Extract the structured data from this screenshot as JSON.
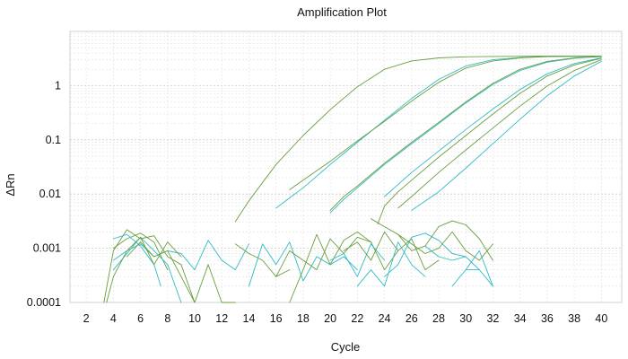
{
  "chart_data": {
    "type": "line",
    "title": "Amplification Plot",
    "xlabel": "Cycle",
    "ylabel": "ΔRn",
    "xlim": [
      0.8,
      41.5
    ],
    "ylim": [
      0.0001,
      10
    ],
    "yscale": "log",
    "grid": true,
    "x_ticks": [
      2,
      4,
      6,
      8,
      10,
      12,
      14,
      16,
      18,
      20,
      22,
      24,
      26,
      28,
      30,
      32,
      34,
      36,
      38,
      40
    ],
    "x_tick_labels": [
      "2",
      "4",
      "6",
      "8",
      "10",
      "12",
      "14",
      "16",
      "18",
      "20",
      "22",
      "24",
      "26",
      "28",
      "30",
      "32",
      "34",
      "36",
      "38",
      "40"
    ],
    "y_ticks": [
      0.0001,
      0.001,
      0.01,
      0.1,
      1
    ],
    "y_tick_labels": [
      "0.0001",
      "0.001",
      "0.01",
      "0.1",
      "1"
    ],
    "colors": {
      "teal": "#2ebcc3",
      "green": "#6a9e3f"
    },
    "series": [
      {
        "color": "#6a9e3f",
        "x": [
          13,
          14,
          16,
          18,
          20,
          22,
          24,
          26,
          28,
          30,
          32,
          34,
          36,
          38,
          40
        ],
        "y": [
          0.0031,
          0.0075,
          0.035,
          0.12,
          0.36,
          0.95,
          2.0,
          2.85,
          3.25,
          3.4,
          3.45,
          3.48,
          3.5,
          3.5,
          3.5
        ]
      },
      {
        "color": "#2ebcc3",
        "x": [
          16,
          17,
          18,
          20,
          22,
          24,
          26,
          28,
          30,
          32,
          34,
          36,
          38,
          40
        ],
        "y": [
          0.0055,
          0.0085,
          0.013,
          0.035,
          0.09,
          0.23,
          0.58,
          1.3,
          2.3,
          3.0,
          3.3,
          3.45,
          3.48,
          3.5
        ]
      },
      {
        "color": "#6a9e3f",
        "x": [
          17,
          18,
          20,
          22,
          24,
          26,
          28,
          30,
          32,
          34,
          36,
          38,
          40
        ],
        "y": [
          0.012,
          0.018,
          0.04,
          0.095,
          0.22,
          0.52,
          1.15,
          2.1,
          2.85,
          3.25,
          3.42,
          3.47,
          3.5
        ]
      },
      {
        "color": "#2ebcc3",
        "x": [
          20,
          21,
          22,
          24,
          26,
          28,
          30,
          32,
          34,
          36,
          38,
          40
        ],
        "y": [
          0.0045,
          0.008,
          0.013,
          0.035,
          0.085,
          0.2,
          0.48,
          1.05,
          1.9,
          2.7,
          3.2,
          3.45
        ]
      },
      {
        "color": "#6a9e3f",
        "x": [
          20,
          21,
          22,
          24,
          26,
          28,
          30,
          32,
          34,
          36,
          38,
          40
        ],
        "y": [
          0.005,
          0.009,
          0.014,
          0.037,
          0.09,
          0.21,
          0.5,
          1.1,
          2.0,
          2.8,
          3.25,
          3.45
        ]
      },
      {
        "color": "#2ebcc3",
        "x": [
          24,
          25,
          26,
          28,
          30,
          32,
          34,
          36,
          38,
          40
        ],
        "y": [
          0.009,
          0.015,
          0.025,
          0.062,
          0.155,
          0.37,
          0.85,
          1.65,
          2.55,
          3.25
        ]
      },
      {
        "color": "#6a9e3f",
        "x": [
          23.5,
          24,
          25,
          26,
          28,
          30,
          32,
          34,
          36,
          38,
          40
        ],
        "y": [
          0.0028,
          0.006,
          0.011,
          0.018,
          0.048,
          0.12,
          0.3,
          0.72,
          1.5,
          2.4,
          3.2
        ]
      },
      {
        "color": "#6a9e3f",
        "x": [
          25,
          26,
          28,
          30,
          32,
          34,
          36,
          38,
          40
        ],
        "y": [
          0.0055,
          0.009,
          0.025,
          0.065,
          0.165,
          0.42,
          0.98,
          1.9,
          3.0
        ]
      },
      {
        "color": "#2ebcc3",
        "x": [
          26,
          28,
          30,
          32,
          34,
          36,
          38,
          40
        ],
        "y": [
          0.005,
          0.011,
          0.03,
          0.085,
          0.24,
          0.65,
          1.5,
          2.8
        ]
      },
      {
        "color": "#2ebcc3",
        "x": [
          4,
          5,
          6,
          7,
          8,
          9,
          10,
          11,
          12,
          13,
          14
        ],
        "y": [
          0.0006,
          0.0009,
          0.0012,
          0.0007,
          0.0009,
          0.0008,
          0.0004,
          0.0014,
          0.0006,
          0.0004,
          0.0012
        ]
      },
      {
        "color": "#6a9e3f",
        "x": [
          4,
          5,
          6,
          7,
          8
        ],
        "y": [
          0.001,
          0.0015,
          0.0019,
          0.0013,
          0.0004
        ]
      },
      {
        "color": "#2ebcc3",
        "x": [
          4,
          5,
          6,
          7,
          8,
          9
        ],
        "y": [
          0.0004,
          0.0008,
          0.0016,
          0.0009,
          0.0005,
          0.0001
        ]
      },
      {
        "color": "#6a9e3f",
        "x": [
          3.3,
          4,
          5,
          6,
          7,
          8,
          9,
          10
        ],
        "y": [
          0.0001,
          0.0009,
          0.0022,
          0.0015,
          0.0017,
          0.0007,
          0.0005,
          0.0001
        ]
      },
      {
        "color": "#2ebcc3",
        "x": [
          4,
          5,
          6,
          7,
          7.5
        ],
        "y": [
          0.0015,
          0.0018,
          0.0011,
          0.0005,
          0.0002
        ]
      },
      {
        "color": "#6a9e3f",
        "x": [
          5,
          6,
          7,
          8,
          9,
          10
        ],
        "y": [
          0.0007,
          0.0013,
          0.0007,
          0.0009,
          0.0003,
          0.0001
        ]
      },
      {
        "color": "#6a9e3f",
        "x": [
          3.5,
          4,
          5,
          6,
          7,
          8,
          9
        ],
        "y": [
          0.0001,
          0.0003,
          0.0009,
          0.0016,
          0.0005,
          0.0013,
          0.0007
        ]
      },
      {
        "color": "#6a9e3f",
        "x": [
          10,
          11,
          12,
          13
        ],
        "y": [
          0.0001,
          0.0005,
          0.0001,
          0.0001
        ]
      },
      {
        "color": "#6a9e3f",
        "x": [
          13,
          14,
          15,
          16,
          17
        ],
        "y": [
          0.0012,
          0.0008,
          0.0006,
          0.0003,
          0.0004
        ]
      },
      {
        "color": "#2ebcc3",
        "x": [
          14,
          15,
          16,
          17,
          18,
          19,
          20,
          21,
          22
        ],
        "y": [
          0.0002,
          0.0012,
          0.0005,
          0.0013,
          0.00025,
          0.0007,
          0.0005,
          0.0007,
          0.0004
        ]
      },
      {
        "color": "#6a9e3f",
        "x": [
          16,
          17,
          18,
          19,
          20,
          21,
          22,
          23,
          24,
          25
        ],
        "y": [
          0.0003,
          0.0009,
          0.0006,
          0.0004,
          0.0015,
          0.0008,
          0.0016,
          0.0013,
          0.0004,
          0.0009
        ]
      },
      {
        "color": "#6a9e3f",
        "x": [
          17,
          18,
          19,
          20,
          21,
          22,
          23
        ],
        "y": [
          0.0001,
          0.0004,
          0.0018,
          0.0005,
          0.0014,
          0.002,
          0.0013
        ]
      },
      {
        "color": "#2ebcc3",
        "x": [
          20,
          21,
          22,
          23,
          24
        ],
        "y": [
          0.0006,
          0.0008,
          0.0003,
          0.0012,
          0.0006
        ]
      },
      {
        "color": "#6a9e3f",
        "x": [
          21,
          22,
          23,
          24,
          25,
          26,
          27,
          28
        ],
        "y": [
          0.0009,
          0.0013,
          0.0006,
          0.002,
          0.0009,
          0.0015,
          0.0004,
          0.0006
        ]
      },
      {
        "color": "#6a9e3f",
        "x": [
          23,
          24,
          25,
          26,
          27,
          28,
          29,
          30,
          31,
          32
        ],
        "y": [
          0.0035,
          0.0025,
          0.0018,
          0.0009,
          0.0011,
          0.0025,
          0.0032,
          0.0027,
          0.0015,
          0.0006
        ]
      },
      {
        "color": "#2ebcc3",
        "x": [
          24,
          25,
          26,
          27,
          28,
          29,
          30
        ],
        "y": [
          0.0003,
          0.0005,
          0.0016,
          0.0019,
          0.0014,
          0.0008,
          0.0007
        ]
      },
      {
        "color": "#6a9e3f",
        "x": [
          25,
          26,
          27,
          28,
          29,
          30,
          31,
          32
        ],
        "y": [
          0.0018,
          0.0012,
          0.0008,
          0.001,
          0.002,
          0.0009,
          0.0006,
          0.0012
        ]
      },
      {
        "color": "#2ebcc3",
        "x": [
          22,
          23,
          24,
          25,
          26,
          27
        ],
        "y": [
          0.0002,
          0.0004,
          0.0002,
          0.0013,
          0.0005,
          0.0003
        ]
      },
      {
        "color": "#2ebcc3",
        "x": [
          27,
          28,
          29,
          30,
          31
        ],
        "y": [
          0.0011,
          0.0007,
          0.0006,
          0.0007,
          0.0004
        ]
      },
      {
        "color": "#2ebcc3",
        "x": [
          29,
          30,
          31,
          32
        ],
        "y": [
          0.0002,
          0.0004,
          0.0004,
          0.0002
        ]
      },
      {
        "color": "#2ebcc3",
        "x": [
          30,
          31,
          32
        ],
        "y": [
          0.0004,
          0.0009,
          0.0002
        ]
      }
    ]
  }
}
